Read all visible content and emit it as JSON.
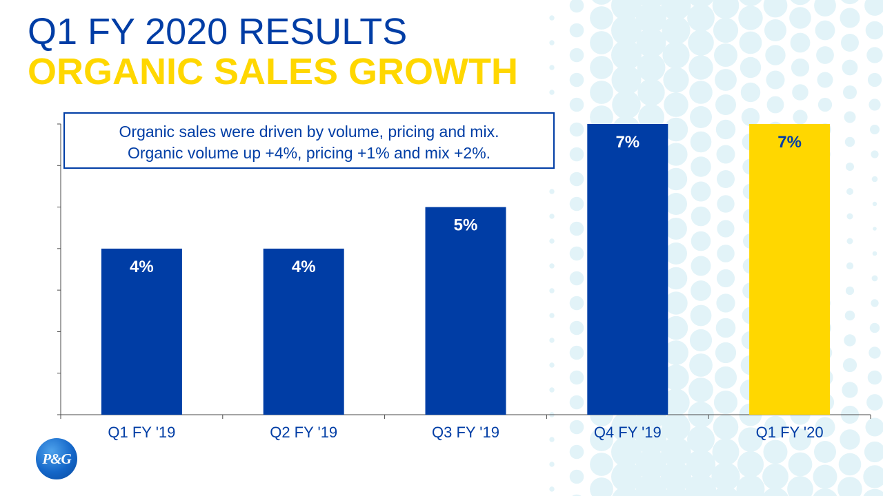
{
  "slide": {
    "title": "Q1 FY 2020 RESULTS",
    "subtitle": "ORGANIC SALES GROWTH",
    "note_lines": [
      "Organic sales were driven by volume, pricing and mix.",
      "Organic volume up +4%, pricing +1% and mix +2%."
    ],
    "logo_text": "P&G"
  },
  "colors": {
    "title_blue": "#003da5",
    "subtitle_yellow": "#ffd700",
    "bar_blue": "#003da5",
    "bar_highlight": "#ffd700",
    "dot_color": "#e2f3f8"
  },
  "chart_data": {
    "type": "bar",
    "categories": [
      "Q1 FY '19",
      "Q2 FY '19",
      "Q3 FY '19",
      "Q4 FY '19",
      "Q1 FY '20"
    ],
    "values": [
      4,
      4,
      5,
      7,
      7
    ],
    "data_labels": [
      "4%",
      "4%",
      "5%",
      "7%",
      "7%"
    ],
    "highlight_index": 4,
    "ylim": [
      0,
      7
    ],
    "ytick_step": 1,
    "show_ytick_labels": false,
    "grid": false,
    "legend": "none"
  }
}
